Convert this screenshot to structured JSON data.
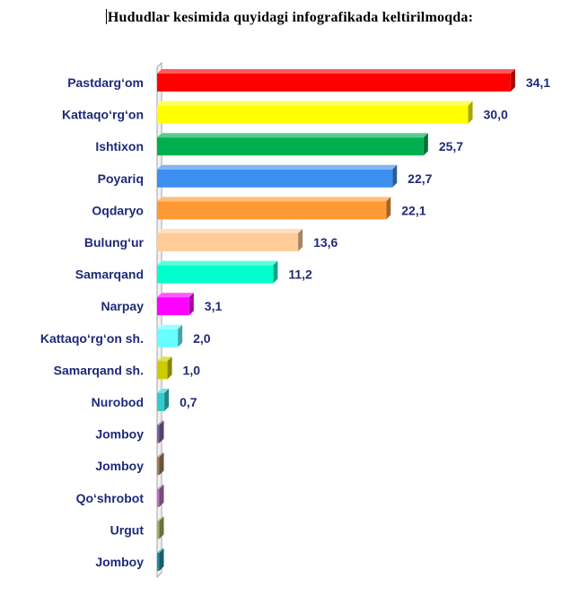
{
  "chart_data": {
    "type": "bar",
    "orientation": "horizontal",
    "title": "Hududlar kesimida quyidagi infografikada keltirilmoqda:",
    "xlabel": "",
    "ylabel": "",
    "grid": false,
    "xlim": [
      0,
      35
    ],
    "categories": [
      "Pastdarg‘om",
      "Kattaqo‘rg‘on",
      "Ishtixon",
      "Poyariq",
      "Oqdaryo",
      "Bulung‘ur",
      "Samarqand",
      "Narpay",
      "Kattaqo‘rg‘on sh.",
      "Samarqand sh.",
      "Nurobod",
      "Jomboy",
      "Jomboy",
      "Qo‘shrobot",
      "Urgut",
      "Jomboy"
    ],
    "values": [
      34.1,
      30.0,
      25.7,
      22.7,
      22.1,
      13.6,
      11.2,
      3.1,
      2.0,
      1.0,
      0.7,
      0,
      0,
      0,
      0,
      0
    ],
    "value_labels": [
      "34,1",
      "30,0",
      "25,7",
      "22,7",
      "22,1",
      "13,6",
      "11,2",
      "3,1",
      "2,0",
      "1,0",
      "0,7",
      "",
      "",
      "",
      "",
      ""
    ],
    "colors": [
      "#ff0000",
      "#ffff00",
      "#00b050",
      "#3d8ff0",
      "#ff9933",
      "#ffcc99",
      "#00ffcc",
      "#ff00ff",
      "#66ffff",
      "#cccc00",
      "#33cccc",
      "#8064a2",
      "#9e8060",
      "#b574b5",
      "#a0b060",
      "#2090a0"
    ]
  }
}
